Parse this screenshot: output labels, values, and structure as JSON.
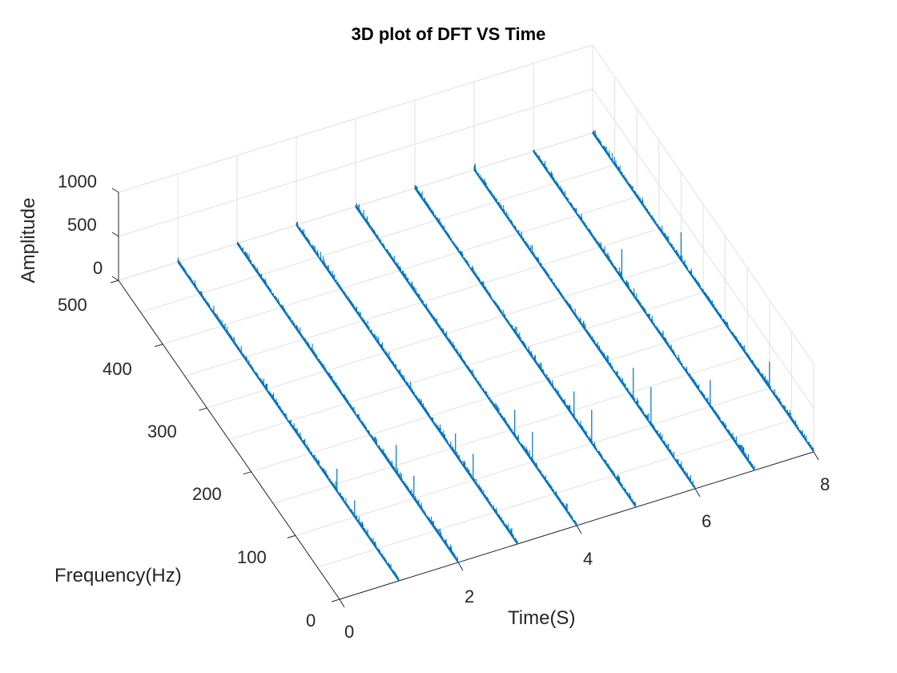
{
  "chart_data": {
    "type": "line",
    "title": "3D plot of DFT VS Time",
    "xlabel": "Time(S)",
    "ylabel": "Frequency(Hz)",
    "zlabel": "Amplitude",
    "xlim": [
      0,
      8
    ],
    "ylim": [
      0,
      500
    ],
    "zlim": [
      0,
      1000
    ],
    "xticks": [
      "0",
      "2",
      "4",
      "6",
      "8"
    ],
    "yticks": [
      "0",
      "100",
      "200",
      "300",
      "400",
      "500"
    ],
    "zticks": [
      "0",
      "500",
      "1000"
    ],
    "grid": true,
    "color": "#0072BD",
    "series": [
      {
        "time": 1,
        "peaks": [
          [
            100,
            190
          ],
          [
            140,
            260
          ]
        ]
      },
      {
        "time": 2,
        "peaks": [
          [
            100,
            260
          ],
          [
            140,
            320
          ]
        ]
      },
      {
        "time": 3,
        "peaks": [
          [
            100,
            300
          ],
          [
            140,
            240
          ]
        ]
      },
      {
        "time": 4,
        "peaks": [
          [
            100,
            340
          ],
          [
            140,
            300
          ]
        ]
      },
      {
        "time": 5,
        "peaks": [
          [
            100,
            380
          ],
          [
            140,
            300
          ]
        ]
      },
      {
        "time": 6,
        "peaks": [
          [
            100,
            430
          ],
          [
            140,
            360
          ]
        ]
      },
      {
        "time": 7,
        "peaks": [
          [
            100,
            300
          ],
          [
            300,
            340
          ]
        ]
      },
      {
        "time": 8,
        "peaks": [
          [
            100,
            300
          ],
          [
            300,
            320
          ]
        ]
      }
    ]
  }
}
